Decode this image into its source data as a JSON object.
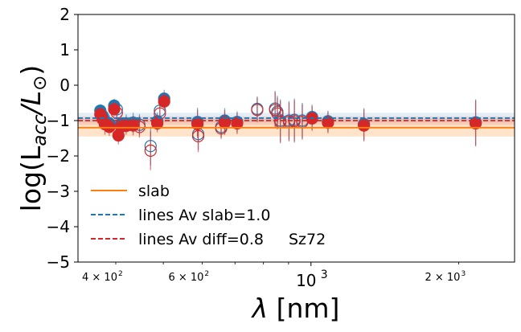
{
  "chart_data": {
    "type": "scatter",
    "title": "",
    "xlabel": "λ [nm]",
    "ylabel": "log(L_acc/L_⊙)",
    "xscale": "log",
    "xlim": [
      335,
      2600
    ],
    "ylim": [
      -5,
      2
    ],
    "y_ticks": [
      {
        "value": 2,
        "label": "2"
      },
      {
        "value": 1,
        "label": "1"
      },
      {
        "value": 0,
        "label": "0"
      },
      {
        "value": -1,
        "label": "−1"
      },
      {
        "value": -2,
        "label": "−2"
      },
      {
        "value": -3,
        "label": "−3"
      },
      {
        "value": -4,
        "label": "−4"
      },
      {
        "value": -5,
        "label": "−5"
      }
    ],
    "x_major_ticks": [
      {
        "value": 1000,
        "base": "10",
        "exp": "3"
      }
    ],
    "x_minor_labeled_ticks": [
      {
        "value": 400,
        "mant": "4 × 10",
        "exp": "2"
      },
      {
        "value": 600,
        "mant": "6 × 10",
        "exp": "2"
      },
      {
        "value": 2000,
        "mant": "2 × 10",
        "exp": "3"
      }
    ],
    "x_minor_ticks": [
      500,
      700,
      800,
      900
    ],
    "annotation": "Sz72",
    "reference_lines": [
      {
        "name": "slab",
        "value": -1.2,
        "band": [
          -1.45,
          -0.95
        ],
        "color": "#ff7f0e",
        "style": "solid"
      },
      {
        "name": "lines Av slab=1.0",
        "value": -0.93,
        "band": [
          -1.05,
          -0.78
        ],
        "color": "#1f77b4",
        "style": "dashed"
      },
      {
        "name": "lines Av diff=0.8",
        "value": -1.0,
        "band": [
          -1.12,
          -0.88
        ],
        "color": "#d62728",
        "style": "dashed"
      }
    ],
    "legend": {
      "position": "lower-left",
      "entries": [
        {
          "label": "slab",
          "color": "#ff7f0e",
          "style": "solid"
        },
        {
          "label": "lines Av slab=1.0",
          "color": "#1f77b4",
          "style": "dashed"
        },
        {
          "label": "lines Av diff=0.8",
          "color": "#d62728",
          "style": "dashed"
        }
      ]
    },
    "series": [
      {
        "name": "lines Av slab=1.0",
        "color": "#1f77b4",
        "points": [
          {
            "x": 372,
            "y": -0.72,
            "err": 0.18,
            "filled": true
          },
          {
            "x": 376,
            "y": -0.86,
            "err": 0.22,
            "filled": true
          },
          {
            "x": 380,
            "y": -1.0,
            "err": 0.3,
            "filled": true
          },
          {
            "x": 388,
            "y": -1.08,
            "err": 0.25,
            "filled": true
          },
          {
            "x": 397,
            "y": -0.58,
            "err": 0.2,
            "filled": true
          },
          {
            "x": 402,
            "y": -0.68,
            "err": 0.22,
            "filled": false
          },
          {
            "x": 410,
            "y": -1.1,
            "err": 0.25,
            "filled": true
          },
          {
            "x": 420,
            "y": -1.08,
            "err": 0.25,
            "filled": true
          },
          {
            "x": 434,
            "y": -1.06,
            "err": 0.28,
            "filled": true
          },
          {
            "x": 447,
            "y": -1.12,
            "err": 0.3,
            "filled": false
          },
          {
            "x": 471,
            "y": -1.72,
            "err": 0.55,
            "filled": false
          },
          {
            "x": 486,
            "y": -1.02,
            "err": 0.25,
            "filled": true
          },
          {
            "x": 492,
            "y": -0.72,
            "err": 0.3,
            "filled": false
          },
          {
            "x": 502,
            "y": -0.38,
            "err": 0.25,
            "filled": true
          },
          {
            "x": 587,
            "y": -1.04,
            "err": 0.4,
            "filled": true
          },
          {
            "x": 589,
            "y": -1.38,
            "err": 0.45,
            "filled": false
          },
          {
            "x": 656,
            "y": -1.18,
            "err": 0.3,
            "filled": false
          },
          {
            "x": 667,
            "y": -1.0,
            "err": 0.35,
            "filled": true
          },
          {
            "x": 707,
            "y": -1.04,
            "err": 0.3,
            "filled": true
          },
          {
            "x": 777,
            "y": -0.67,
            "err": 0.35,
            "filled": false
          },
          {
            "x": 845,
            "y": -0.66,
            "err": 0.5,
            "filled": false
          },
          {
            "x": 854,
            "y": -0.75,
            "err": 0.45,
            "filled": false
          },
          {
            "x": 866,
            "y": -1.0,
            "err": 0.6,
            "filled": false
          },
          {
            "x": 902,
            "y": -1.0,
            "err": 0.55,
            "filled": false
          },
          {
            "x": 925,
            "y": -0.98,
            "err": 0.6,
            "filled": false
          },
          {
            "x": 960,
            "y": -1.0,
            "err": 0.5,
            "filled": false
          },
          {
            "x": 1005,
            "y": -0.9,
            "err": 0.35,
            "filled": true
          },
          {
            "x": 1083,
            "y": -1.02,
            "err": 0.3,
            "filled": true
          },
          {
            "x": 1282,
            "y": -1.1,
            "err": 0.45,
            "filled": true
          },
          {
            "x": 2166,
            "y": -1.05,
            "err": 0.65,
            "filled": true
          }
        ]
      },
      {
        "name": "lines Av diff=0.8",
        "color": "#d62728",
        "points": [
          {
            "x": 372,
            "y": -0.82,
            "err": 0.18,
            "filled": true
          },
          {
            "x": 376,
            "y": -0.96,
            "err": 0.22,
            "filled": true
          },
          {
            "x": 380,
            "y": -1.1,
            "err": 0.3,
            "filled": true
          },
          {
            "x": 388,
            "y": -1.18,
            "err": 0.25,
            "filled": true
          },
          {
            "x": 397,
            "y": -0.68,
            "err": 0.2,
            "filled": true
          },
          {
            "x": 402,
            "y": -0.78,
            "err": 0.22,
            "filled": false
          },
          {
            "x": 405,
            "y": -1.42,
            "err": 0.25,
            "filled": true
          },
          {
            "x": 410,
            "y": -1.18,
            "err": 0.25,
            "filled": true
          },
          {
            "x": 420,
            "y": -1.15,
            "err": 0.25,
            "filled": true
          },
          {
            "x": 434,
            "y": -1.14,
            "err": 0.28,
            "filled": true
          },
          {
            "x": 447,
            "y": -1.18,
            "err": 0.3,
            "filled": false
          },
          {
            "x": 471,
            "y": -1.85,
            "err": 0.55,
            "filled": false
          },
          {
            "x": 486,
            "y": -1.08,
            "err": 0.25,
            "filled": true
          },
          {
            "x": 492,
            "y": -0.8,
            "err": 0.3,
            "filled": false
          },
          {
            "x": 502,
            "y": -0.46,
            "err": 0.25,
            "filled": true
          },
          {
            "x": 587,
            "y": -1.1,
            "err": 0.4,
            "filled": true
          },
          {
            "x": 589,
            "y": -1.44,
            "err": 0.45,
            "filled": false
          },
          {
            "x": 656,
            "y": -1.22,
            "err": 0.3,
            "filled": false
          },
          {
            "x": 667,
            "y": -1.06,
            "err": 0.35,
            "filled": true
          },
          {
            "x": 707,
            "y": -1.08,
            "err": 0.3,
            "filled": true
          },
          {
            "x": 777,
            "y": -0.7,
            "err": 0.35,
            "filled": false
          },
          {
            "x": 845,
            "y": -0.7,
            "err": 0.5,
            "filled": false
          },
          {
            "x": 854,
            "y": -0.8,
            "err": 0.45,
            "filled": false
          },
          {
            "x": 866,
            "y": -1.04,
            "err": 0.6,
            "filled": false
          },
          {
            "x": 902,
            "y": -1.04,
            "err": 0.55,
            "filled": false
          },
          {
            "x": 925,
            "y": -1.02,
            "err": 0.6,
            "filled": false
          },
          {
            "x": 960,
            "y": -1.04,
            "err": 0.5,
            "filled": false
          },
          {
            "x": 1005,
            "y": -0.94,
            "err": 0.35,
            "filled": true
          },
          {
            "x": 1083,
            "y": -1.06,
            "err": 0.3,
            "filled": true
          },
          {
            "x": 1282,
            "y": -1.14,
            "err": 0.45,
            "filled": true
          },
          {
            "x": 2166,
            "y": -1.08,
            "err": 0.65,
            "filled": true
          }
        ]
      }
    ]
  }
}
